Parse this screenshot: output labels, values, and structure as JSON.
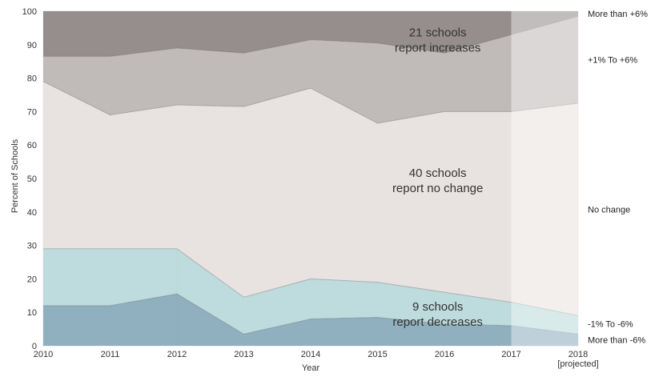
{
  "chart_data": {
    "type": "area",
    "stacked": true,
    "xlabel": "Year",
    "ylabel": "Percent of Schools",
    "ylim": [
      0,
      100
    ],
    "xlim": [
      2010,
      2018
    ],
    "grid": true,
    "x": [
      2010,
      2011,
      2012,
      2013,
      2014,
      2015,
      2016,
      2017,
      2018
    ],
    "x_tick_labels": [
      "2010",
      "2011",
      "2012",
      "2013",
      "2014",
      "2015",
      "2016",
      "2017",
      "2018"
    ],
    "x_tick_sublabels": [
      "",
      "",
      "",
      "",
      "",
      "",
      "",
      "",
      "[projected]"
    ],
    "y_ticks": [
      0,
      10,
      20,
      30,
      40,
      50,
      60,
      70,
      80,
      90,
      100
    ],
    "projected_from": 2017,
    "series": [
      {
        "name": "More than -6%",
        "color": "#8AABBC",
        "cumulative": [
          12,
          12,
          15.5,
          3.5,
          8,
          8.5,
          6.5,
          6,
          3.5
        ]
      },
      {
        "name": "-1% To -6%",
        "color": "#BBD9DB",
        "cumulative": [
          29,
          29,
          29,
          14.5,
          20,
          19,
          16,
          13,
          9
        ]
      },
      {
        "name": "No change",
        "color": "#E7E1DE",
        "cumulative": [
          79,
          69,
          72,
          71.5,
          77,
          66.5,
          70,
          70,
          72.5
        ]
      },
      {
        "name": "+1% To +6%",
        "color": "#BDB7B4",
        "cumulative": [
          86.5,
          86.5,
          89,
          87.5,
          91.5,
          90.5,
          87.5,
          93,
          98.5
        ]
      },
      {
        "name": "More than +6%",
        "color": "#8F8887",
        "cumulative": [
          100,
          100,
          100,
          100,
          100,
          100,
          100,
          100,
          100
        ]
      }
    ],
    "annotations": [
      {
        "lines": [
          "21 schools",
          "report increases"
        ],
        "x": 2015.9,
        "y": 92.5
      },
      {
        "lines": [
          "40 schools",
          "report no change"
        ],
        "x": 2015.9,
        "y": 50.5
      },
      {
        "lines": [
          "9 schools",
          "report decreases"
        ],
        "x": 2015.9,
        "y": 10.5
      }
    ]
  }
}
